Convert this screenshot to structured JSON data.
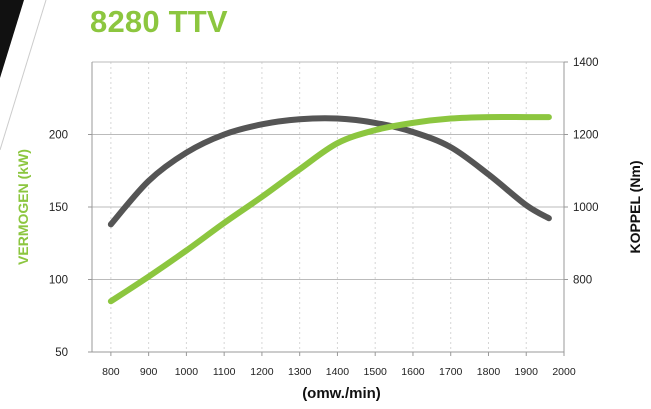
{
  "colors": {
    "green": "#8cc63f",
    "dark": "#555555",
    "grid": "#bbbbbb",
    "ink": "#222222"
  },
  "chart_data": {
    "type": "line",
    "title": "8280 TTV",
    "xlabel": "(omw./min)",
    "ylabel": "VERMOGEN (kW)",
    "ylabel_right": "KOPPEL (Nm)",
    "xlim": [
      750,
      2000
    ],
    "ylim": [
      50,
      250
    ],
    "ylim_right": [
      600,
      1400
    ],
    "x_ticks": [
      800,
      900,
      1000,
      1100,
      1200,
      1300,
      1400,
      1500,
      1600,
      1700,
      1800,
      1900,
      2000
    ],
    "y_ticks": [
      50,
      100,
      150,
      200
    ],
    "y_ticks_right": [
      800,
      1000,
      1200,
      1400
    ],
    "grid": true,
    "series": [
      {
        "name": "VERMOGEN (kW)",
        "axis": "left",
        "color": "#8cc63f",
        "x": [
          800,
          900,
          1000,
          1100,
          1200,
          1300,
          1400,
          1500,
          1600,
          1700,
          1800,
          1900,
          1960
        ],
        "y": [
          85,
          102,
          120,
          139,
          157,
          176,
          194,
          203,
          208,
          211,
          212,
          212,
          212
        ]
      },
      {
        "name": "KOPPEL (Nm)",
        "axis": "right",
        "color": "#555555",
        "x": [
          800,
          900,
          1000,
          1100,
          1200,
          1300,
          1400,
          1500,
          1600,
          1700,
          1800,
          1900,
          1960
        ],
        "y": [
          952,
          1072,
          1150,
          1200,
          1228,
          1242,
          1244,
          1232,
          1207,
          1165,
          1090,
          1005,
          969
        ]
      }
    ]
  }
}
